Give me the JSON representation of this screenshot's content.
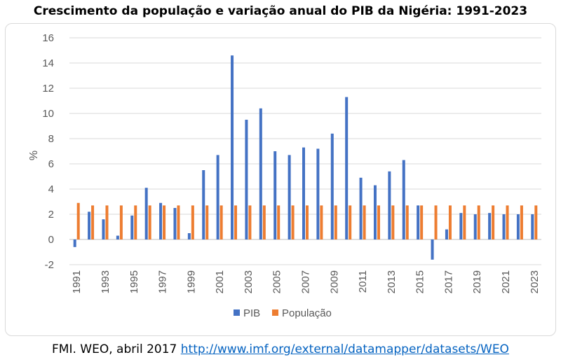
{
  "chart_data": {
    "type": "bar",
    "title": "Crescimento da população e variação anual do PIB da Nigéria: 1991-2023",
    "ylabel": "%",
    "xlabel": "",
    "ylim": [
      -2,
      16
    ],
    "yticks": [
      -2,
      0,
      2,
      4,
      6,
      8,
      10,
      12,
      14,
      16
    ],
    "grid": true,
    "legend_position": "bottom",
    "categories": [
      "1991",
      "1992",
      "1993",
      "1994",
      "1995",
      "1996",
      "1997",
      "1998",
      "1999",
      "2000",
      "2001",
      "2002",
      "2003",
      "2004",
      "2005",
      "2006",
      "2007",
      "2008",
      "2009",
      "2010",
      "2011",
      "2012",
      "2013",
      "2014",
      "2015",
      "2016",
      "2017",
      "2018",
      "2019",
      "2020",
      "2021",
      "2022",
      "2023"
    ],
    "xtick_labels": [
      "1991",
      "1993",
      "1995",
      "1997",
      "1999",
      "2001",
      "2003",
      "2005",
      "2007",
      "2009",
      "2011",
      "2013",
      "2015",
      "2017",
      "2019",
      "2021",
      "2023"
    ],
    "series": [
      {
        "name": "PIB",
        "color": "#4472c4",
        "values": [
          -0.6,
          2.2,
          1.6,
          0.3,
          1.9,
          4.1,
          2.9,
          2.5,
          0.5,
          5.5,
          6.7,
          14.6,
          9.5,
          10.4,
          7.0,
          6.7,
          7.3,
          7.2,
          8.4,
          11.3,
          4.9,
          4.3,
          5.4,
          6.3,
          2.7,
          -1.6,
          0.8,
          2.1,
          2.0,
          2.1,
          2.0,
          2.0,
          2.0
        ]
      },
      {
        "name": "População",
        "color": "#ed7d31",
        "values": [
          2.9,
          2.7,
          2.7,
          2.7,
          2.7,
          2.7,
          2.7,
          2.7,
          2.7,
          2.7,
          2.7,
          2.7,
          2.7,
          2.7,
          2.7,
          2.7,
          2.7,
          2.7,
          2.7,
          2.7,
          2.7,
          2.7,
          2.7,
          2.7,
          2.7,
          2.7,
          2.7,
          2.7,
          2.7,
          2.7,
          2.7,
          2.7,
          2.7
        ]
      }
    ]
  },
  "source": {
    "prefix": "FMI. WEO, abril 2017 ",
    "link_text": "http://www.imf.org/external/datamapper/datasets/WEO"
  }
}
